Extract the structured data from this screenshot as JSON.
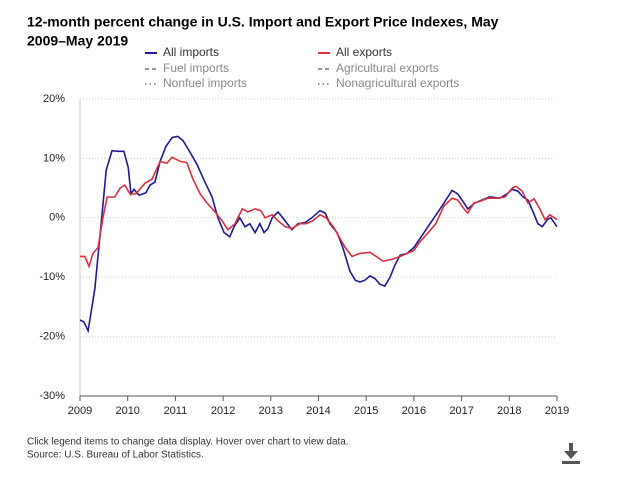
{
  "chart_data": {
    "type": "line",
    "title_lines": [
      "12-month percent change in U.S. Import and Export Price Indexes, May",
      "2009–May 2019"
    ],
    "series": [
      {
        "name": "All imports",
        "color": "#1f1a8f",
        "x": [
          2009.0,
          2009.08,
          2009.17,
          2009.31,
          2009.42,
          2009.55,
          2009.67,
          2009.8,
          2009.92,
          2010.01,
          2010.07,
          2010.13,
          2010.24,
          2010.38,
          2010.47,
          2010.57,
          2010.68,
          2010.8,
          2010.93,
          2011.05,
          2011.16,
          2011.31,
          2011.45,
          2011.62,
          2011.77,
          2011.89,
          2012.02,
          2012.14,
          2012.23,
          2012.35,
          2012.46,
          2012.56,
          2012.67,
          2012.77,
          2012.86,
          2012.94,
          2013.03,
          2013.15,
          2013.3,
          2013.44,
          2013.57,
          2013.72,
          2013.86,
          2014.03,
          2014.14,
          2014.24,
          2014.39,
          2014.51,
          2014.66,
          2014.77,
          2014.87,
          2014.97,
          2015.08,
          2015.18,
          2015.29,
          2015.39,
          2015.5,
          2015.6,
          2015.71,
          2015.86,
          2016.0,
          2016.17,
          2016.38,
          2016.55,
          2016.71,
          2016.8,
          2016.92,
          2017.05,
          2017.13,
          2017.28,
          2017.43,
          2017.59,
          2017.8,
          2017.95,
          2018.06,
          2018.18,
          2018.29,
          2018.39,
          2018.5,
          2018.6,
          2018.69,
          2018.81,
          2018.87,
          2019.0
        ],
        "values": [
          -17.2,
          -17.5,
          -19,
          -12,
          -3,
          8,
          11.3,
          11.2,
          11.2,
          8.5,
          4.0,
          4.8,
          3.8,
          4.2,
          5.5,
          6.0,
          9.5,
          12,
          13.5,
          13.7,
          13.0,
          11,
          9,
          6,
          3.5,
          0,
          -2.5,
          -3.2,
          -1.5,
          0,
          -1.5,
          -1,
          -2.5,
          -1,
          -2.5,
          -1.8,
          0,
          1,
          -0.5,
          -2,
          -1,
          -0.8,
          0,
          1.2,
          0.8,
          -1,
          -2.5,
          -5,
          -9,
          -10.5,
          -10.8,
          -10.5,
          -9.8,
          -10.2,
          -11.2,
          -11.5,
          -10,
          -8,
          -6.3,
          -6.0,
          -5,
          -3,
          -0.5,
          1.5,
          3.5,
          4.6,
          4,
          2.5,
          1.5,
          2.5,
          3.0,
          3.5,
          3.3,
          4,
          4.8,
          4.5,
          3.5,
          3.0,
          1,
          -1,
          -1.5,
          -0.2,
          0,
          -1.5
        ]
      },
      {
        "name": "All exports",
        "color": "#d8303f",
        "x": [
          2009.0,
          2009.1,
          2009.19,
          2009.27,
          2009.38,
          2009.48,
          2009.57,
          2009.73,
          2009.84,
          2009.94,
          2010.05,
          2010.17,
          2010.36,
          2010.51,
          2010.68,
          2010.82,
          2010.93,
          2011.1,
          2011.24,
          2011.37,
          2011.52,
          2011.66,
          2011.83,
          2011.98,
          2012.1,
          2012.25,
          2012.4,
          2012.52,
          2012.67,
          2012.79,
          2012.88,
          2013.03,
          2013.15,
          2013.3,
          2013.44,
          2013.61,
          2013.74,
          2013.88,
          2014.03,
          2014.16,
          2014.31,
          2014.56,
          2014.7,
          2014.87,
          2015.08,
          2015.21,
          2015.35,
          2015.54,
          2015.71,
          2015.86,
          2016.0,
          2016.13,
          2016.3,
          2016.46,
          2016.63,
          2016.8,
          2016.92,
          2017.05,
          2017.13,
          2017.26,
          2017.39,
          2017.55,
          2017.72,
          2017.91,
          2018.06,
          2018.14,
          2018.27,
          2018.39,
          2018.52,
          2018.64,
          2018.75,
          2018.85,
          2019.0
        ],
        "values": [
          -6.5,
          -6.5,
          -8.2,
          -6,
          -5,
          0,
          3.5,
          3.5,
          5,
          5.5,
          4,
          4,
          5.8,
          6.5,
          9.5,
          9.2,
          10.2,
          9.5,
          9.3,
          6.5,
          4,
          2.5,
          1,
          -0.5,
          -2,
          -1,
          1.5,
          1,
          1.5,
          1.2,
          0,
          0.5,
          -0.5,
          -1.5,
          -1.8,
          -1,
          -1,
          -0.5,
          0.5,
          0,
          -1.5,
          -5,
          -6.5,
          -6,
          -5.8,
          -6.5,
          -7.3,
          -7,
          -6.5,
          -6.0,
          -5.5,
          -4,
          -2.5,
          -1,
          2,
          3.3,
          3.0,
          1.5,
          0.8,
          2.5,
          2.8,
          3.3,
          3.3,
          3.5,
          5,
          5.3,
          4.5,
          2.5,
          3.2,
          1.5,
          -0.3,
          0.5,
          -0.3
        ]
      }
    ],
    "hidden_series": [
      {
        "name": "Fuel imports",
        "color": "#777777",
        "dash": "dashed"
      },
      {
        "name": "Agricultural exports",
        "color": "#777777",
        "dash": "dashed"
      },
      {
        "name": "Nonfuel imports",
        "color": "#777777",
        "dash": "dotted"
      },
      {
        "name": "Nonagricultural exports",
        "color": "#777777",
        "dash": "dotted"
      }
    ],
    "xlim": [
      2009,
      2019
    ],
    "xticks": [
      2009,
      2010,
      2011,
      2012,
      2013,
      2014,
      2015,
      2016,
      2017,
      2018,
      2019
    ],
    "ylim": [
      -30,
      20
    ],
    "yticks": [
      {
        "value": -30,
        "label": "-30%"
      },
      {
        "value": -20,
        "label": "-20%"
      },
      {
        "value": -10,
        "label": "-10%"
      },
      {
        "value": 0,
        "label": "0%"
      },
      {
        "value": 10,
        "label": "10%"
      },
      {
        "value": 20,
        "label": "20%"
      }
    ],
    "grid": true,
    "notes": [
      "Click legend items to change data display. Hover over chart to view data.",
      "Source: U.S. Bureau of Labor Statistics."
    ]
  }
}
